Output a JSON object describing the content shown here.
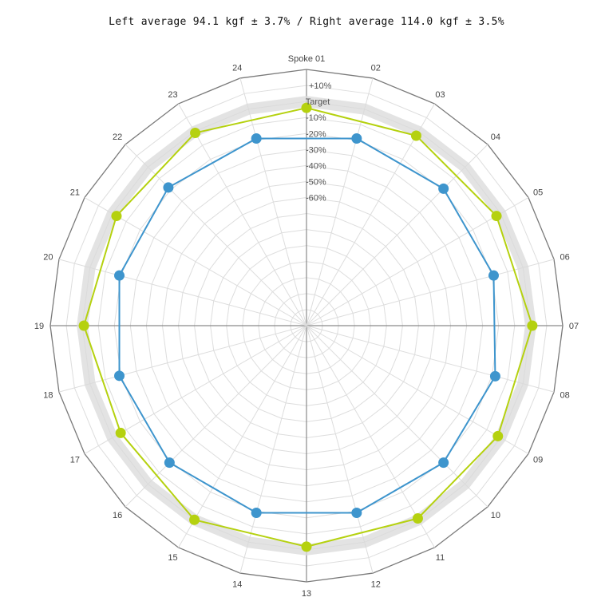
{
  "chart_data": {
    "type": "radar",
    "title": "Left average 94.1 kgf ± 3.7% / Right average 114.0 kgf ± 3.5%",
    "categories": [
      "Spoke 01",
      "02",
      "03",
      "04",
      "05",
      "06",
      "07",
      "08",
      "09",
      "10",
      "11",
      "12",
      "13",
      "14",
      "15",
      "16",
      "17",
      "18",
      "19",
      "20",
      "21",
      "22",
      "23",
      "24"
    ],
    "ring_labels": [
      "+10%",
      "Target",
      "-10%",
      "-20%",
      "-30%",
      "-40%",
      "-50%",
      "-60%"
    ],
    "ring_values": [
      10,
      0,
      -10,
      -20,
      -30,
      -40,
      -50,
      -60
    ],
    "r_range": [
      -140,
      20
    ],
    "target_band_percent": 3.5,
    "series": [
      {
        "color": "#3e95cd",
        "values": [
          null,
          -19,
          null,
          -19,
          null,
          -19,
          null,
          -18,
          null,
          -19,
          null,
          -19,
          null,
          -19,
          null,
          -19,
          null,
          -19,
          null,
          -19,
          null,
          -18,
          null,
          -19
        ]
      },
      {
        "color": "#b5d10f",
        "values": [
          -4,
          null,
          -3,
          null,
          -3,
          null,
          1,
          null,
          -2,
          null,
          -1,
          null,
          -2,
          null,
          0,
          null,
          -6,
          null,
          -1,
          null,
          -3,
          null,
          -1,
          null
        ]
      }
    ]
  }
}
